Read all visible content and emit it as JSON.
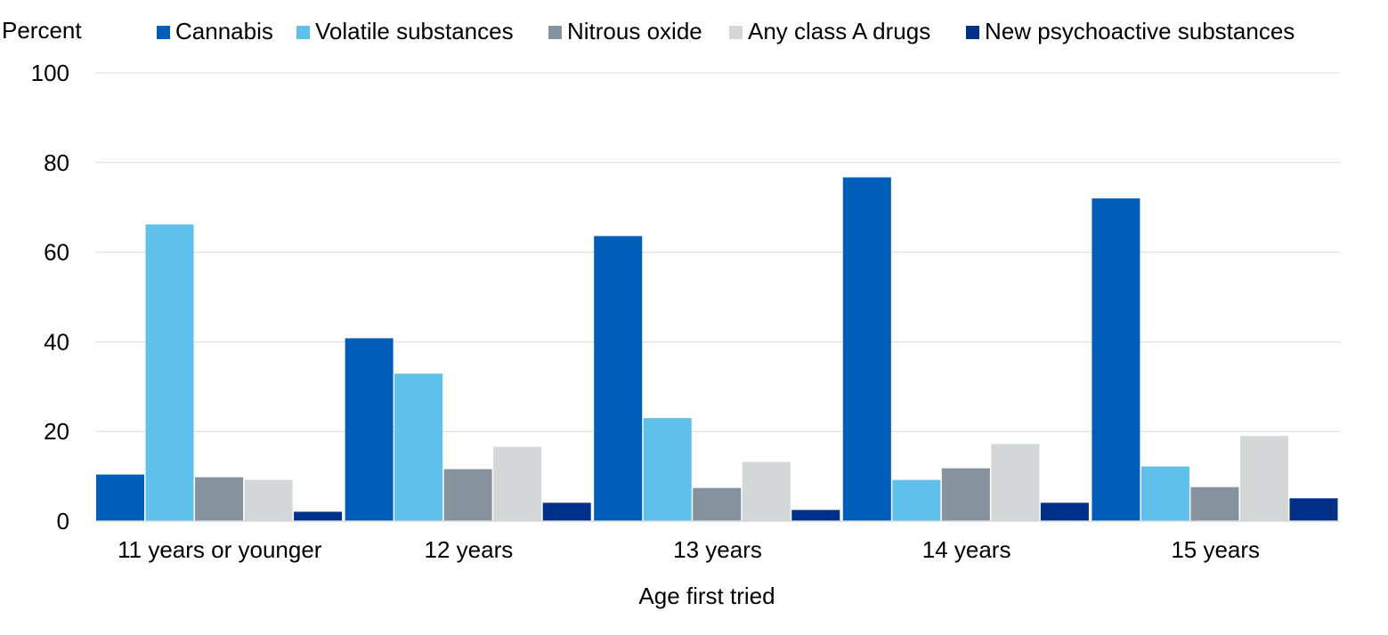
{
  "chart_data": {
    "type": "bar",
    "ylabel": "Percent",
    "xlabel": "Age first tried",
    "ylim": [
      0,
      100
    ],
    "yticks": [
      0,
      20,
      40,
      60,
      80,
      100
    ],
    "grid": true,
    "legend_position": "top",
    "categories": [
      "11 years or younger",
      "12 years",
      "13 years",
      "14 years",
      "15 years"
    ],
    "series": [
      {
        "name": "Cannabis",
        "color": "#005EB8",
        "values": [
          10.4,
          40.8,
          63.6,
          76.7,
          72.0
        ]
      },
      {
        "name": "Volatile substances",
        "color": "#5FC1EA",
        "values": [
          66.2,
          32.9,
          23.0,
          9.2,
          12.2
        ]
      },
      {
        "name": "Nitrous oxide",
        "color": "#86939E",
        "values": [
          9.8,
          11.6,
          7.4,
          11.8,
          7.6
        ]
      },
      {
        "name": "Any class A drugs",
        "color": "#D3D7D7",
        "values": [
          9.2,
          16.6,
          13.2,
          17.2,
          19.0
        ]
      },
      {
        "name": "New psychoactive substances",
        "color": "#003087",
        "values": [
          2.1,
          4.1,
          2.5,
          4.1,
          5.1
        ]
      }
    ]
  }
}
